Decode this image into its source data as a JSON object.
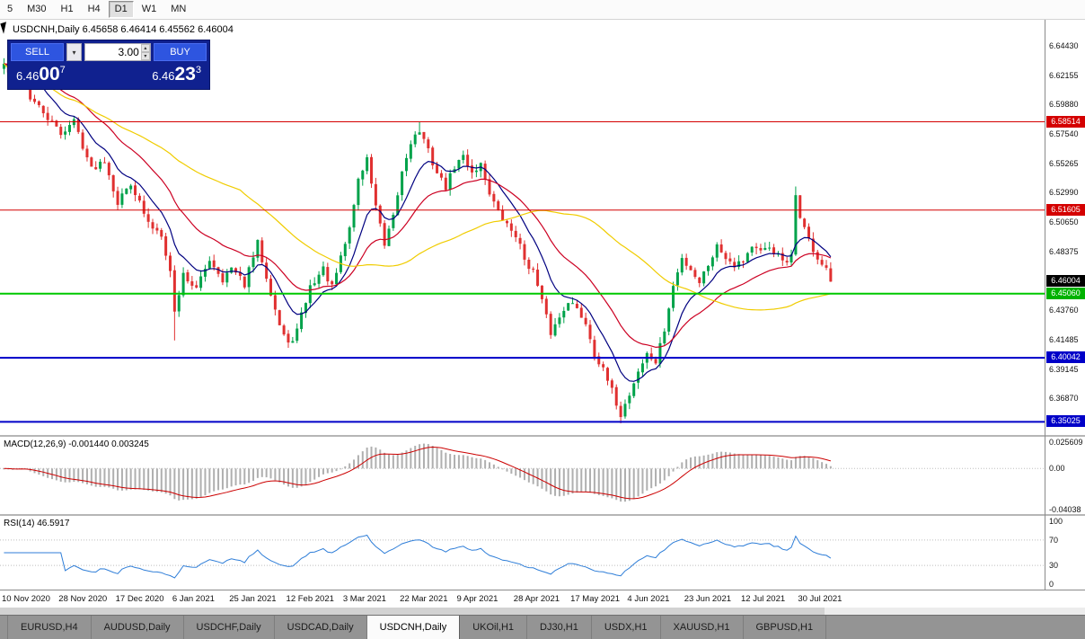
{
  "toolbar": {
    "timeframes": [
      "5",
      "M30",
      "H1",
      "H4",
      "D1",
      "W1",
      "MN"
    ],
    "active": "D1"
  },
  "symbol_info": {
    "text": "USDCNH,Daily 6.45658 6.46414 6.45562 6.46004"
  },
  "trade_panel": {
    "sell_label": "SELL",
    "buy_label": "BUY",
    "volume": "3.00",
    "sell_price": {
      "base": "6.46",
      "pips": "00",
      "point": "7"
    },
    "buy_price": {
      "base": "6.46",
      "pips": "23",
      "point": "3"
    },
    "panel_color": "#10218f",
    "button_color": "#2e55e0"
  },
  "macd": {
    "label": "MACD(12,26,9) -0.001440 0.003245"
  },
  "rsi": {
    "label": "RSI(14) 46.5917"
  },
  "price_axis": {
    "labels": [
      "6.64430",
      "6.62155",
      "6.59880",
      "6.57540",
      "6.55265",
      "6.52990",
      "6.50650",
      "6.48375",
      "6.43760",
      "6.41485",
      "6.39145",
      "6.36870"
    ],
    "current_price": {
      "text": "6.46004",
      "bg": "#000000"
    },
    "level_badges": [
      {
        "text": "6.58514",
        "bg": "#d40000"
      },
      {
        "text": "6.51605",
        "bg": "#d40000"
      },
      {
        "text": "6.45060",
        "bg": "#00b200"
      },
      {
        "text": "6.40042",
        "bg": "#0000c8"
      },
      {
        "text": "6.35025",
        "bg": "#0000c8"
      }
    ]
  },
  "date_axis": {
    "labels": [
      "10 Nov 2020",
      "28 Nov 2020",
      "17 Dec 2020",
      "6 Jan 2021",
      "25 Jan 2021",
      "12 Feb 2021",
      "3 Mar 2021",
      "22 Mar 2021",
      "9 Apr 2021",
      "28 Apr 2021",
      "17 May 2021",
      "4 Jun 2021",
      "23 Jun 2021",
      "12 Jul 2021",
      "30 Jul 2021"
    ],
    "indices": [
      0,
      13,
      26,
      39,
      52,
      65,
      78,
      91,
      104,
      117,
      130,
      143,
      156,
      169,
      182
    ]
  },
  "tabs": {
    "items": [
      "EURUSD,H4",
      "AUDUSD,Daily",
      "USDCHF,Daily",
      "USDCAD,Daily",
      "USDCNH,Daily",
      "UKOil,H1",
      "DJ30,H1",
      "USDX,H1",
      "XAUUSD,H1",
      "GBPUSD,H1"
    ],
    "active": "USDCNH,Daily"
  },
  "chart_data": {
    "type": "candlestick",
    "title": "USDCNH,Daily",
    "ohlc_line": {
      "open": "6.45658",
      "high": "6.46414",
      "low": "6.45562",
      "close": "6.46004"
    },
    "y_range": [
      6.34,
      6.665
    ],
    "num_candles": 190,
    "candle_spacing_px": 4.87,
    "jitter": 0.006,
    "wick": 0.005,
    "seed": 42,
    "colors": {
      "up": "#00A24A",
      "down": "#E03030",
      "ma_fast": "#000080",
      "ma_mid": "#CC0022",
      "ma_slow": "#F0CC00",
      "macd_hist": "#AFAFAF",
      "macd_signal": "#CC0000",
      "rsi": "#2F7ED8",
      "grid": "#BDBDBD"
    },
    "moving_averages": [
      {
        "type": "ema",
        "period": 10,
        "color_key": "ma_fast"
      },
      {
        "type": "ema",
        "period": 25,
        "color_key": "ma_mid"
      },
      {
        "type": "sma",
        "period": 55,
        "color_key": "ma_slow"
      }
    ],
    "horizontal_levels": [
      {
        "value": 6.58514,
        "color": "#D40000",
        "width": 1
      },
      {
        "value": 6.51605,
        "color": "#D40000",
        "width": 1
      },
      {
        "value": 6.4506,
        "color": "#00C800",
        "width": 2
      },
      {
        "value": 6.40042,
        "color": "#0000C8",
        "width": 2
      },
      {
        "value": 6.35025,
        "color": "#0000C8",
        "width": 2
      }
    ],
    "price_path_anchors": [
      [
        0,
        6.63
      ],
      [
        2,
        6.618
      ],
      [
        4,
        6.64
      ],
      [
        6,
        6.604
      ],
      [
        9,
        6.592
      ],
      [
        13,
        6.576
      ],
      [
        16,
        6.586
      ],
      [
        20,
        6.548
      ],
      [
        23,
        6.556
      ],
      [
        26,
        6.522
      ],
      [
        29,
        6.538
      ],
      [
        33,
        6.505
      ],
      [
        36,
        6.498
      ],
      [
        38,
        6.468
      ],
      [
        39,
        6.436
      ],
      [
        41,
        6.466
      ],
      [
        44,
        6.454
      ],
      [
        47,
        6.478
      ],
      [
        50,
        6.462
      ],
      [
        52,
        6.47
      ],
      [
        55,
        6.458
      ],
      [
        58,
        6.49
      ],
      [
        61,
        6.452
      ],
      [
        63,
        6.426
      ],
      [
        65,
        6.41
      ],
      [
        67,
        6.422
      ],
      [
        70,
        6.456
      ],
      [
        73,
        6.47
      ],
      [
        75,
        6.455
      ],
      [
        77,
        6.478
      ],
      [
        79,
        6.502
      ],
      [
        81,
        6.54
      ],
      [
        83,
        6.556
      ],
      [
        85,
        6.52
      ],
      [
        87,
        6.487
      ],
      [
        89,
        6.51
      ],
      [
        91,
        6.546
      ],
      [
        93,
        6.57
      ],
      [
        95,
        6.578
      ],
      [
        97,
        6.562
      ],
      [
        99,
        6.545
      ],
      [
        101,
        6.534
      ],
      [
        103,
        6.55
      ],
      [
        105,
        6.558
      ],
      [
        107,
        6.546
      ],
      [
        109,
        6.552
      ],
      [
        111,
        6.53
      ],
      [
        113,
        6.514
      ],
      [
        115,
        6.504
      ],
      [
        117,
        6.497
      ],
      [
        119,
        6.478
      ],
      [
        121,
        6.468
      ],
      [
        123,
        6.444
      ],
      [
        125,
        6.42
      ],
      [
        127,
        6.432
      ],
      [
        129,
        6.446
      ],
      [
        131,
        6.438
      ],
      [
        133,
        6.428
      ],
      [
        135,
        6.404
      ],
      [
        137,
        6.39
      ],
      [
        139,
        6.374
      ],
      [
        141,
        6.356
      ],
      [
        143,
        6.372
      ],
      [
        145,
        6.39
      ],
      [
        147,
        6.403
      ],
      [
        149,
        6.397
      ],
      [
        151,
        6.422
      ],
      [
        153,
        6.456
      ],
      [
        155,
        6.478
      ],
      [
        157,
        6.47
      ],
      [
        159,
        6.46
      ],
      [
        161,
        6.474
      ],
      [
        163,
        6.488
      ],
      [
        165,
        6.48
      ],
      [
        167,
        6.474
      ],
      [
        169,
        6.477
      ],
      [
        171,
        6.488
      ],
      [
        173,
        6.482
      ],
      [
        175,
        6.487
      ],
      [
        177,
        6.48
      ],
      [
        179,
        6.473
      ],
      [
        180,
        6.479
      ],
      [
        181,
        6.528
      ],
      [
        182,
        6.512
      ],
      [
        184,
        6.492
      ],
      [
        186,
        6.478
      ],
      [
        188,
        6.468
      ],
      [
        189,
        6.46
      ]
    ],
    "wick_events": [
      {
        "i": 39,
        "low": 6.414
      },
      {
        "i": 95,
        "high": 6.5855
      },
      {
        "i": 141,
        "low": 6.3515
      },
      {
        "i": 181,
        "high": 6.5345
      }
    ],
    "indicators": [
      {
        "name": "MACD",
        "params": [
          12,
          26,
          9
        ],
        "display": "MACD(12,26,9) -0.001440 0.003245",
        "range": [
          -0.0445,
          0.031
        ],
        "axis_labels": [
          {
            "text": "0.025609",
            "value": 0.025609
          },
          {
            "text": "0.00",
            "value": 0
          },
          {
            "text": "-0.04038",
            "value": -0.04038
          }
        ]
      },
      {
        "name": "RSI",
        "params": [
          14
        ],
        "display": "RSI(14) 46.5917",
        "range": [
          0,
          100
        ],
        "levels": [
          70,
          30
        ],
        "axis_labels": [
          {
            "text": "100",
            "value": 100
          },
          {
            "text": "70",
            "value": 70
          },
          {
            "text": "30",
            "value": 30
          },
          {
            "text": "0",
            "value": 0
          }
        ]
      }
    ]
  }
}
